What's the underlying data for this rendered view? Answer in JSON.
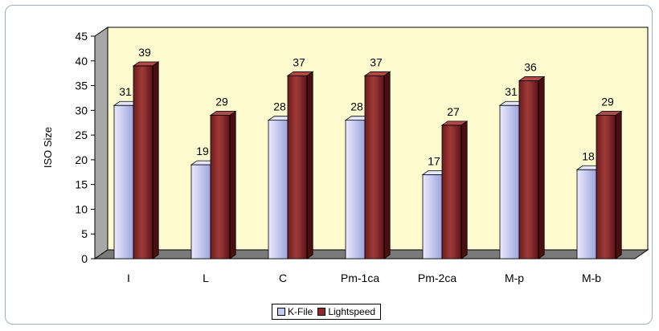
{
  "chart_data": {
    "type": "bar",
    "title": "",
    "xlabel": "",
    "ylabel": "ISO Size",
    "ylim": [
      0,
      45
    ],
    "yticks": [
      0,
      5,
      10,
      15,
      20,
      25,
      30,
      35,
      40,
      45
    ],
    "categories": [
      "I",
      "L",
      "C",
      "Pm-1ca",
      "Pm-2ca",
      "M-p",
      "M-b"
    ],
    "series": [
      {
        "name": "K-File",
        "values": [
          31,
          19,
          28,
          28,
          17,
          31,
          18
        ],
        "color": "#c6c9f0"
      },
      {
        "name": "Lightspeed",
        "values": [
          39,
          29,
          37,
          37,
          27,
          36,
          29
        ],
        "color": "#8a2a2a"
      }
    ],
    "grid": false,
    "legend_position": "bottom",
    "wall_color": "#fffbd0",
    "floor_color": "#7a7a7a"
  }
}
